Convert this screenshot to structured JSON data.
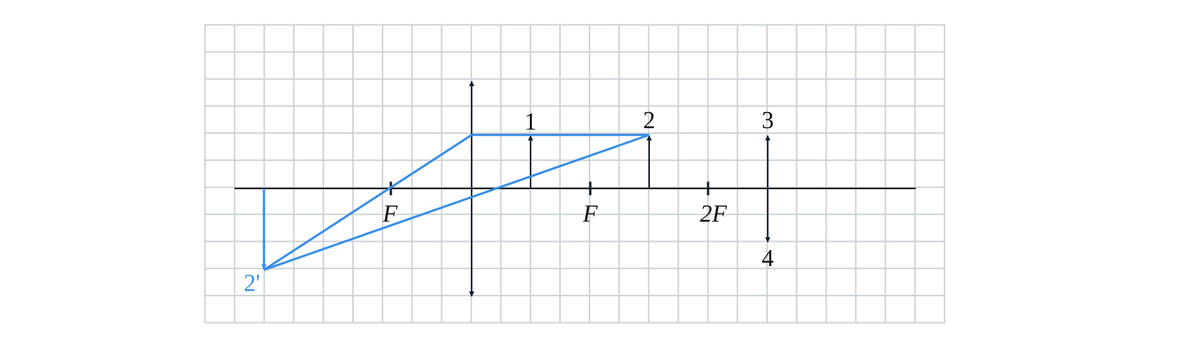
{
  "labels": {
    "object_1": "1",
    "object_2": "2",
    "object_3": "3",
    "object_4": "4",
    "focus_left": "F",
    "focus_right": "F",
    "double_focus": "2F",
    "image_2": "2'"
  }
}
